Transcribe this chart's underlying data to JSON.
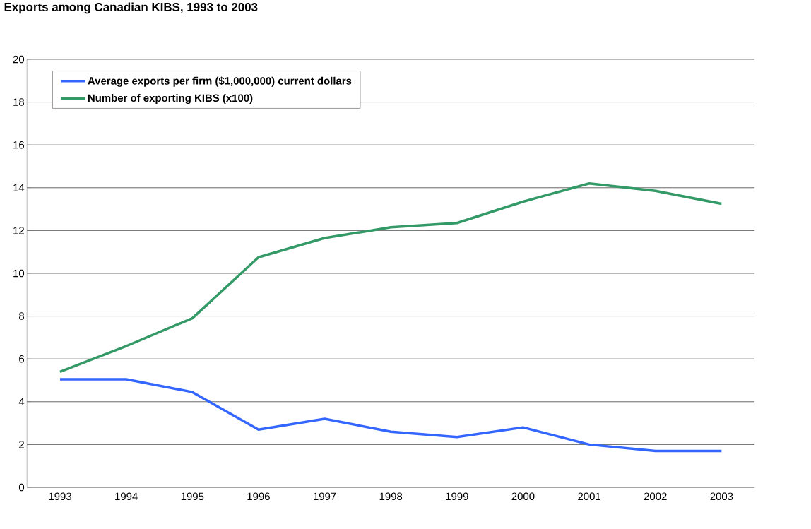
{
  "chart_data": {
    "type": "line",
    "title": "Exports among Canadian KIBS, 1993 to 2003",
    "categories": [
      "1993",
      "1994",
      "1995",
      "1996",
      "1997",
      "1998",
      "1999",
      "2000",
      "2001",
      "2002",
      "2003"
    ],
    "series": [
      {
        "name": "Average exports per firm ($1,000,000) current dollars",
        "color": "#3366ff",
        "values": [
          5.05,
          5.05,
          4.45,
          2.7,
          3.2,
          2.6,
          2.35,
          2.8,
          2.0,
          1.7,
          1.7
        ]
      },
      {
        "name": "Number of exporting KIBS (x100)",
        "color": "#339966",
        "values": [
          5.4,
          6.6,
          7.9,
          10.75,
          11.65,
          12.15,
          12.35,
          13.35,
          14.2,
          13.85,
          13.25
        ]
      }
    ],
    "ylim": [
      0,
      20
    ],
    "yticks": [
      0,
      2,
      4,
      6,
      8,
      10,
      12,
      14,
      16,
      18,
      20
    ],
    "grid": "y",
    "legend": "top left",
    "marker": "none",
    "line_style": "solid"
  }
}
